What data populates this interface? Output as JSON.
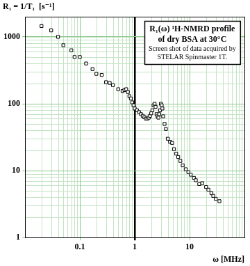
{
  "chart_data": {
    "type": "scatter",
    "y_label": "R₁ = 1/T₁  [s⁻¹]",
    "x_label": "ω [MHz]",
    "annotation": [
      "R₁(ω) ¹H-NMRD profile",
      "of dry BSA at 30°C",
      "Screen shot of data acquired by",
      "STELAR Spinmaster 1T."
    ],
    "x": [
      0.02,
      0.03,
      0.04,
      0.05,
      0.07,
      0.08,
      0.1,
      0.13,
      0.17,
      0.2,
      0.25,
      0.3,
      0.35,
      0.4,
      0.5,
      0.6,
      0.65,
      0.7,
      0.75,
      0.8,
      0.85,
      0.9,
      0.95,
      1.0,
      1.1,
      1.2,
      1.3,
      1.4,
      1.5,
      1.6,
      1.7,
      1.8,
      1.9,
      2.0,
      2.1,
      2.2,
      2.3,
      2.4,
      2.5,
      2.6,
      2.7,
      2.8,
      2.9,
      3.0,
      3.1,
      3.2,
      3.3,
      3.5,
      3.7,
      4.0,
      4.4,
      4.8,
      5.2,
      5.7,
      6.2,
      6.8,
      7.5,
      8.5,
      9.5,
      10.5,
      12,
      13,
      15,
      17,
      20,
      22,
      25,
      27,
      30,
      35
    ],
    "values": [
      1450,
      1250,
      1000,
      750,
      630,
      500,
      500,
      400,
      330,
      280,
      270,
      210,
      205,
      190,
      165,
      155,
      160,
      165,
      150,
      130,
      120,
      105,
      95,
      85,
      80,
      75,
      70,
      66,
      63,
      60,
      60,
      62,
      66,
      72,
      80,
      95,
      100,
      90,
      70,
      65,
      62,
      70,
      80,
      100,
      95,
      85,
      65,
      50,
      42,
      30,
      27,
      26,
      21,
      18,
      16,
      14,
      12,
      10.5,
      9.5,
      8.7,
      7.8,
      7.2,
      6.3,
      6.5,
      5.7,
      5.2,
      4.6,
      4.2,
      3.8,
      3.5
    ],
    "color": "#000000",
    "marker": "square",
    "xlim": [
      0.01,
      100
    ],
    "ylim": [
      1,
      2000
    ],
    "xticks": [
      0.1,
      1,
      10
    ],
    "yticks": [
      1,
      10,
      100,
      1000
    ],
    "log": true,
    "grid": true
  }
}
